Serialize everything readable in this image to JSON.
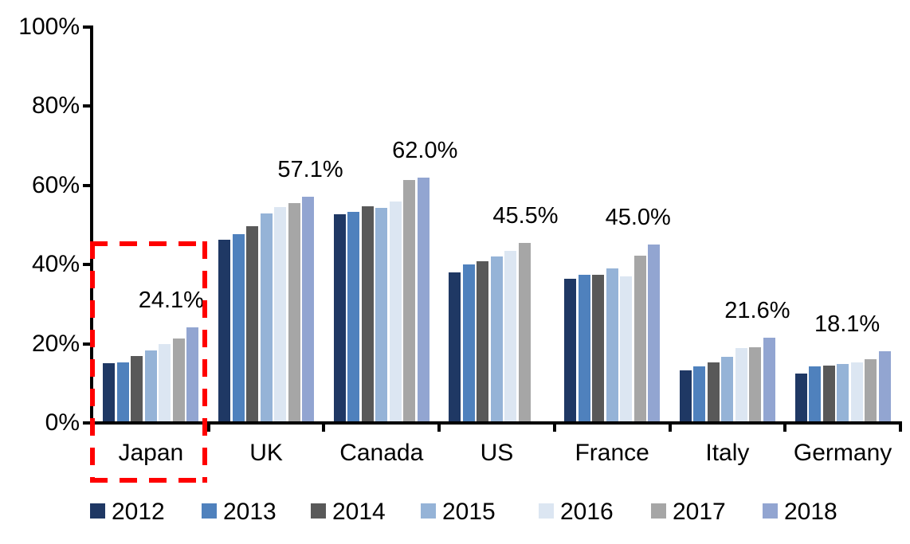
{
  "chart_data": {
    "type": "bar",
    "title": "",
    "xlabel": "",
    "ylabel": "",
    "ylim": [
      0,
      100
    ],
    "yticks": [
      "0%",
      "20%",
      "40%",
      "60%",
      "80%",
      "100%"
    ],
    "grid": false,
    "legend_position": "bottom",
    "categories": [
      "Japan",
      "UK",
      "Canada",
      "US",
      "France",
      "Italy",
      "Germany"
    ],
    "series": [
      {
        "name": "2012",
        "color": "#1F3864",
        "values": [
          15.1,
          46.2,
          52.8,
          38.1,
          36.4,
          13.3,
          12.5
        ]
      },
      {
        "name": "2013",
        "color": "#4F81BD",
        "values": [
          15.3,
          47.6,
          53.3,
          40.0,
          37.5,
          14.2,
          14.2
        ]
      },
      {
        "name": "2014",
        "color": "#595959",
        "values": [
          16.9,
          49.7,
          54.7,
          40.9,
          37.4,
          15.3,
          14.5
        ]
      },
      {
        "name": "2015",
        "color": "#95B3D7",
        "values": [
          18.4,
          52.9,
          54.4,
          42.0,
          39.0,
          16.8,
          14.8
        ]
      },
      {
        "name": "2016",
        "color": "#DCE6F2",
        "values": [
          20.0,
          54.5,
          55.9,
          43.5,
          37.1,
          19.0,
          15.3
        ]
      },
      {
        "name": "2017",
        "color": "#A6A6A6",
        "values": [
          21.3,
          55.5,
          61.3,
          45.5,
          42.2,
          19.1,
          16.0
        ]
      },
      {
        "name": "2018",
        "color": "#92A5D1",
        "values": [
          24.1,
          57.1,
          62.0,
          null,
          45.0,
          21.6,
          18.1
        ]
      }
    ],
    "data_labels": [
      "24.1%",
      "57.1%",
      "62.0%",
      "45.5%",
      "45.0%",
      "21.6%",
      "18.1%"
    ],
    "annotations": {
      "highlight_box_category": "Japan",
      "highlight_color": "#FF0000"
    },
    "axis_color": "#000000",
    "text_color": "#000000"
  }
}
